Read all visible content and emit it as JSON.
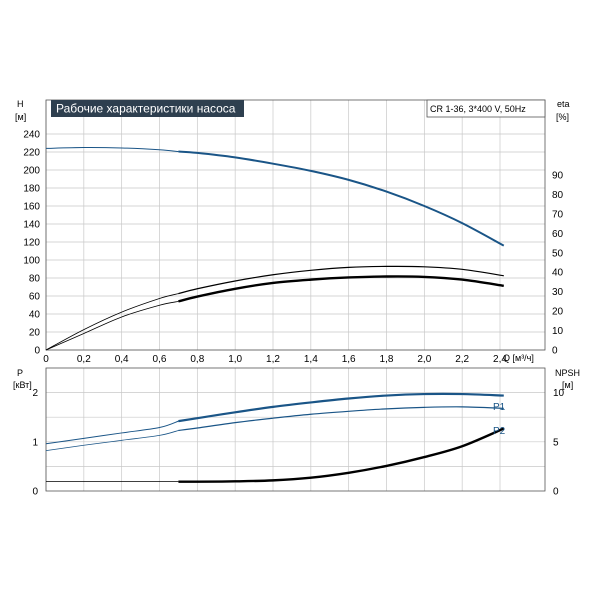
{
  "chart_data": [
    {
      "type": "line",
      "title": "Рабочие характеристики насоса",
      "info": "CR 1-36, 3*400 V, 50Hz",
      "left_axis": {
        "name": "H",
        "unit": "[м]",
        "range": [
          0,
          240
        ],
        "ticks": [
          0,
          20,
          40,
          60,
          80,
          100,
          120,
          140,
          160,
          180,
          200,
          220,
          240
        ]
      },
      "right_axis": {
        "name": "eta",
        "unit": "[%]",
        "range": [
          0,
          100
        ],
        "ticks": [
          0,
          10,
          20,
          30,
          40,
          50,
          60,
          70,
          80,
          90
        ]
      },
      "x_axis": {
        "label": "Q [м³/ч]",
        "range": [
          0,
          2.4
        ],
        "ticks": [
          "0",
          "0,2",
          "0,4",
          "0,6",
          "0,8",
          "1,0",
          "1,2",
          "1,4",
          "1,6",
          "1,8",
          "2,0",
          "2,2",
          "2,4"
        ]
      },
      "grid": true,
      "series": [
        {
          "key": "H",
          "axis": "left",
          "color": "#1a5587",
          "x": [
            0,
            0.2,
            0.4,
            0.6,
            0.7,
            0.8,
            1.0,
            1.2,
            1.4,
            1.6,
            1.8,
            2.0,
            2.2,
            2.42
          ],
          "y": [
            224,
            225,
            224.5,
            222.5,
            220.5,
            219,
            214,
            207,
            199,
            189,
            176,
            160,
            141,
            116
          ]
        },
        {
          "key": "eta_thin",
          "axis": "right",
          "color": "#000000",
          "x": [
            0,
            0.2,
            0.4,
            0.6,
            0.7,
            0.8,
            1.0,
            1.2,
            1.4,
            1.6,
            1.8,
            2.0,
            2.2,
            2.42
          ],
          "y": [
            0,
            10.5,
            19.5,
            26.5,
            29,
            31.5,
            35.5,
            38.7,
            41,
            42.5,
            43,
            42.8,
            41.5,
            38.2
          ]
        },
        {
          "key": "eta_thick",
          "axis": "right",
          "color": "#000000",
          "x": [
            0,
            0.2,
            0.4,
            0.6,
            0.7,
            0.8,
            1.0,
            1.2,
            1.4,
            1.6,
            1.8,
            2.0,
            2.2,
            2.42
          ],
          "y": [
            0,
            8.5,
            17,
            23,
            25,
            27.5,
            31.5,
            34.5,
            36.2,
            37.3,
            37.8,
            37.6,
            36.2,
            33
          ]
        }
      ]
    },
    {
      "type": "line",
      "left_axis": {
        "name": "P",
        "unit": "[кВт]",
        "range": [
          0,
          2.5
        ],
        "ticks": [
          0,
          1,
          2
        ]
      },
      "right_axis": {
        "name": "NPSH",
        "unit": "[м]",
        "range": [
          0,
          12.5
        ],
        "ticks": [
          0,
          5,
          10
        ]
      },
      "x_axis": {
        "range": [
          0,
          2.4
        ],
        "ticks": [
          "0",
          "0,2",
          "0,4",
          "0,6",
          "0,8",
          "1,0",
          "1,2",
          "1,4",
          "1,6",
          "1,8",
          "2,0",
          "2,2",
          "2,4"
        ]
      },
      "grid": true,
      "series": [
        {
          "name": "P1",
          "axis": "left",
          "color": "#1a5587",
          "x": [
            0,
            0.2,
            0.4,
            0.6,
            0.7,
            0.8,
            1.0,
            1.2,
            1.4,
            1.6,
            1.8,
            2.0,
            2.2,
            2.42
          ],
          "y": [
            0.96,
            1.07,
            1.18,
            1.29,
            1.42,
            1.48,
            1.6,
            1.71,
            1.8,
            1.88,
            1.94,
            1.97,
            1.97,
            1.94
          ]
        },
        {
          "name": "P2",
          "axis": "left",
          "color": "#1a5587",
          "x": [
            0,
            0.2,
            0.4,
            0.6,
            0.7,
            0.8,
            1.0,
            1.2,
            1.4,
            1.6,
            1.8,
            2.0,
            2.2,
            2.42
          ],
          "y": [
            0.82,
            0.93,
            1.03,
            1.13,
            1.23,
            1.28,
            1.39,
            1.48,
            1.56,
            1.62,
            1.67,
            1.7,
            1.71,
            1.68
          ]
        },
        {
          "key": "NPSH",
          "axis": "right",
          "color": "#000000",
          "x": [
            0,
            0.2,
            0.4,
            0.6,
            0.7,
            0.8,
            1.0,
            1.2,
            1.4,
            1.6,
            1.8,
            2.0,
            2.2,
            2.42
          ],
          "y": [
            0.95,
            0.95,
            0.95,
            0.95,
            0.95,
            0.95,
            0.98,
            1.08,
            1.35,
            1.85,
            2.55,
            3.45,
            4.55,
            6.35
          ]
        }
      ]
    }
  ]
}
